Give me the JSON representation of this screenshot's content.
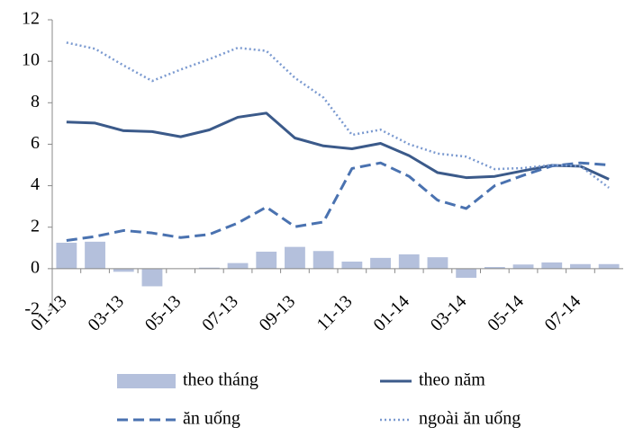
{
  "chart_data": {
    "type": "combo",
    "categories": [
      "01-13",
      null,
      "03-13",
      null,
      "05-13",
      null,
      "07-13",
      null,
      "09-13",
      null,
      "11-13",
      null,
      "01-14",
      null,
      "03-14",
      null,
      "05-14",
      null,
      "07-14",
      null
    ],
    "series": [
      {
        "name": "theo tháng",
        "type": "bar",
        "color": "#b4c0dc",
        "values": [
          1.25,
          1.3,
          -0.15,
          -0.85,
          0.0,
          0.05,
          0.27,
          0.82,
          1.05,
          0.85,
          0.34,
          0.52,
          0.69,
          0.55,
          -0.44,
          0.08,
          0.2,
          0.3,
          0.22,
          0.22
        ]
      },
      {
        "name": "theo năm",
        "type": "line",
        "style": "solid",
        "color": "#3b5a8a",
        "values": [
          7.07,
          7.02,
          6.65,
          6.61,
          6.36,
          6.69,
          7.3,
          7.5,
          6.3,
          5.92,
          5.78,
          6.04,
          5.45,
          4.63,
          4.39,
          4.45,
          4.72,
          4.98,
          4.94,
          4.31
        ]
      },
      {
        "name": "ăn uống",
        "type": "line",
        "style": "dashed",
        "color": "#4a72b0",
        "values": [
          1.36,
          1.55,
          1.84,
          1.72,
          1.5,
          1.65,
          2.2,
          2.97,
          2.02,
          2.25,
          4.83,
          5.1,
          4.45,
          3.3,
          2.9,
          4.0,
          4.5,
          4.95,
          5.1,
          5.0
        ]
      },
      {
        "name": "ngoài ăn uống",
        "type": "line",
        "style": "dotted",
        "color": "#7b9ad0",
        "values": [
          10.9,
          10.6,
          9.8,
          9.05,
          9.6,
          10.1,
          10.65,
          10.5,
          9.2,
          8.25,
          6.45,
          6.7,
          6.0,
          5.55,
          5.4,
          4.8,
          4.85,
          5.0,
          4.95,
          3.9
        ]
      }
    ],
    "ylim": [
      -2,
      12
    ],
    "yticks": [
      -2,
      0,
      2,
      4,
      6,
      8,
      10,
      12
    ],
    "grid": false,
    "legend": "bottom"
  }
}
